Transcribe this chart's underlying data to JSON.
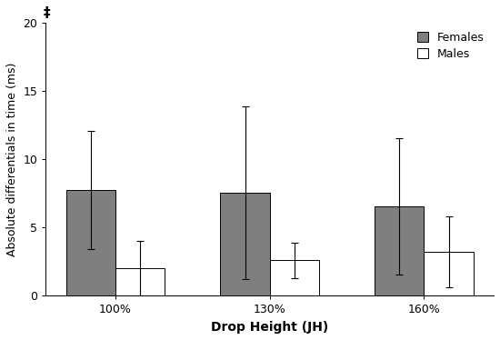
{
  "categories": [
    "100%",
    "130%",
    "160%"
  ],
  "females_means": [
    7.75,
    7.55,
    6.55
  ],
  "females_errors_upper": [
    4.3,
    6.3,
    5.0
  ],
  "females_errors_lower": [
    4.3,
    6.3,
    5.0
  ],
  "males_means": [
    2.0,
    2.6,
    3.2
  ],
  "males_errors_upper": [
    2.0,
    1.3,
    2.6
  ],
  "males_errors_lower": [
    2.0,
    1.3,
    2.6
  ],
  "females_color": "#7f7f7f",
  "males_color": "#ffffff",
  "bar_edgecolor": "#000000",
  "ylabel": "Absolute differentials in time (ms)",
  "xlabel": "Drop Height (JH)",
  "ylim": [
    0,
    20
  ],
  "yticks": [
    0,
    5,
    10,
    15,
    20
  ],
  "legend_females": "Females",
  "legend_males": "Males",
  "dagger_symbol": "‡",
  "bar_width": 0.32,
  "capsize": 3,
  "axis_fontsize": 9,
  "tick_fontsize": 9,
  "legend_fontsize": 9,
  "xlabel_fontsize": 10
}
